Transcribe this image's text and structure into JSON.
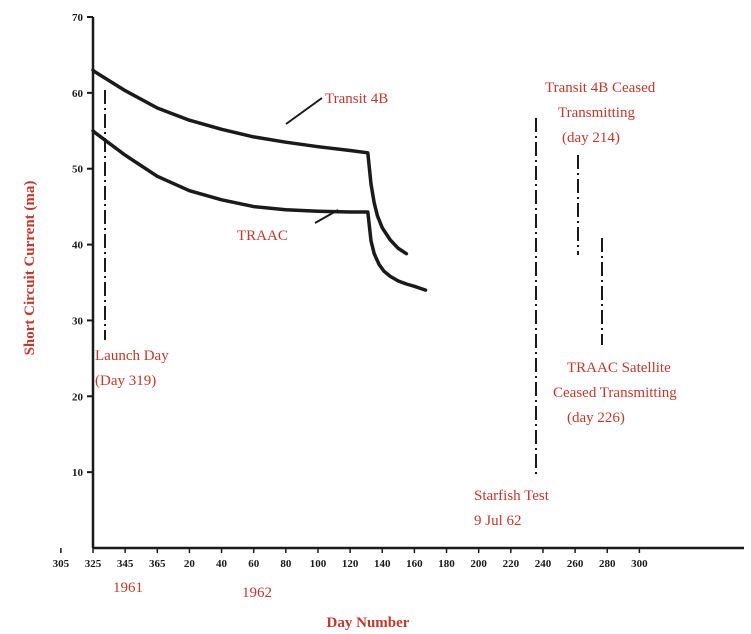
{
  "chart_data": {
    "type": "line",
    "xlabel": "Day Number",
    "ylabel": "Short Circuit Current (ma)",
    "ylim": [
      0,
      70
    ],
    "x_ticks": [
      "305",
      "325",
      "345",
      "365",
      "20",
      "40",
      "60",
      "80",
      "100",
      "120",
      "140",
      "160",
      "180",
      "200",
      "220",
      "240",
      "260",
      "280",
      "300"
    ],
    "y_ticks": [
      "10",
      "20",
      "30",
      "40",
      "50",
      "60",
      "70"
    ],
    "year_labels": [
      "1961",
      "1962"
    ],
    "series": [
      {
        "name": "Transit 4B",
        "x": [
          0,
          1,
          20,
          40,
          60,
          80,
          100,
          120,
          140,
          160,
          171,
          173,
          175,
          177,
          180,
          185,
          190,
          195
        ],
        "values": [
          63.0,
          62.8,
          60.3,
          58.0,
          56.4,
          55.2,
          54.2,
          53.5,
          52.9,
          52.4,
          52.1,
          48.0,
          45.5,
          43.8,
          42.2,
          40.6,
          39.5,
          38.8
        ]
      },
      {
        "name": "TRAAC",
        "x": [
          0,
          1,
          20,
          40,
          60,
          80,
          100,
          120,
          140,
          160,
          171,
          173,
          175,
          178,
          181,
          185,
          190,
          195,
          200,
          207
        ],
        "values": [
          55.0,
          54.8,
          51.8,
          49.0,
          47.1,
          45.9,
          45.0,
          44.6,
          44.4,
          44.3,
          44.3,
          40.5,
          38.8,
          37.4,
          36.5,
          35.8,
          35.2,
          34.8,
          34.5,
          34.0
        ]
      }
    ],
    "annotations": [
      {
        "text": "Transit 4B",
        "lines": [
          "Transit 4B"
        ]
      },
      {
        "text": "TRAAC",
        "lines": [
          "TRAAC"
        ]
      },
      {
        "text": "Transit 4B Ceased Transmitting (day 214)",
        "lines": [
          "Transit 4B Ceased",
          "Transmitting",
          "(day 214)"
        ]
      },
      {
        "text": "Launch Day (Day 319)",
        "lines": [
          "Launch Day",
          "(Day 319)"
        ]
      },
      {
        "text": "TRAAC Satellite Ceased Transmitting (day 226)",
        "lines": [
          "TRAAC Satellite",
          "Ceased Transmitting",
          "(day 226)"
        ]
      },
      {
        "text": "Starfish Test 9 Jul 62",
        "lines": [
          "Starfish Test",
          "9 Jul 62"
        ]
      }
    ],
    "colors": {
      "curve": "#1a1a1a",
      "annotation": "#c0392b"
    }
  }
}
